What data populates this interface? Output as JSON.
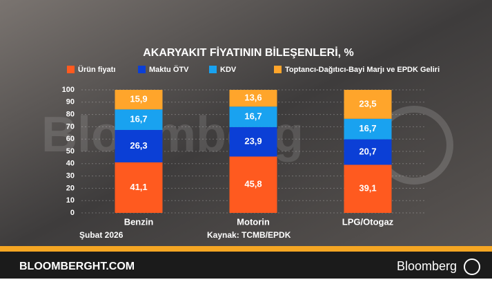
{
  "chart_data": {
    "type": "stacked_bar",
    "title": "AKARYAKIT FİYATININ BİLEŞENLERİ, %",
    "categories": [
      "Benzin",
      "Motorin",
      "LPG/Otogaz"
    ],
    "series": [
      {
        "name": "Ürün fiyatı",
        "color": "#ff5a1f",
        "values": [
          41.1,
          45.8,
          39.1
        ],
        "value_labels": [
          "41,1",
          "45,8",
          "39,1"
        ]
      },
      {
        "name": "Maktu ÖTV",
        "color": "#0b3fd6",
        "values": [
          26.3,
          23.9,
          20.7
        ],
        "value_labels": [
          "26,3",
          "23,9",
          "20,7"
        ]
      },
      {
        "name": "KDV",
        "color": "#19a2f0",
        "values": [
          16.7,
          16.7,
          16.7
        ],
        "value_labels": [
          "16,7",
          "16,7",
          "16,7"
        ]
      },
      {
        "name": "Toptancı-Dağıtıcı-Bayi Marjı ve EPDK Geliri",
        "color": "#ffa52b",
        "values": [
          15.9,
          13.6,
          23.5
        ],
        "value_labels": [
          "15,9",
          "13,6",
          "23,5"
        ]
      }
    ],
    "ylim": [
      0,
      100
    ],
    "yticks": [
      0,
      10,
      20,
      30,
      40,
      50,
      60,
      70,
      80,
      90,
      100
    ],
    "grid": true,
    "note": "Şubat 2026",
    "source": "Kaynak: TCMB/EPDK",
    "watermark": "Bloomberg"
  },
  "footer": {
    "site": "BLOOMBERGHT.COM",
    "brand": "Bloomberg"
  }
}
